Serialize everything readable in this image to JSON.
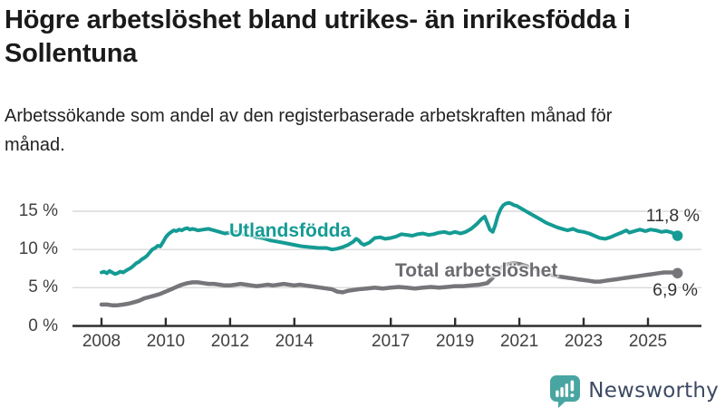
{
  "header": {
    "title": "Högre arbetslöshet bland utrikes- än inrikesfödda i Sollentuna",
    "subtitle": "Arbetssökande som andel av den registerbaserade arbetskraften månad för månad."
  },
  "footer": {
    "brand": "Newsworthy",
    "logo_icon": "bar-chart-speech-bubble-icon"
  },
  "colors": {
    "accent_teal": "#149b94",
    "series_gray": "#76767a",
    "label_gray": "#6b6b70",
    "grid": "#d9d9d9",
    "axis": "#2e2e2e",
    "annotation_text": "#333333",
    "logo_teal": "#48a5a2",
    "brand_navy": "#3d4a63"
  },
  "chart_data": {
    "type": "line",
    "title": "Högre arbetslöshet bland utrikes- än inrikesfödda i Sollentuna",
    "subtitle": "Arbetssökande som andel av den registerbaserade arbetskraften månad för månad.",
    "xlabel": "",
    "ylabel": "",
    "grid": "horizontal",
    "legend_position": "inline-labels",
    "y_axis": {
      "ticks": [
        0,
        5,
        10,
        15
      ],
      "labels": [
        "0 %",
        "5 %",
        "10 %",
        "15 %"
      ],
      "ylim": [
        0,
        16.5
      ]
    },
    "x_axis": {
      "ticks": [
        2008,
        2010,
        2012,
        2014,
        2017,
        2019,
        2021,
        2023,
        2025
      ],
      "labels": [
        "2008",
        "2010",
        "2012",
        "2014",
        "2017",
        "2019",
        "2021",
        "2023",
        "2025"
      ],
      "xlim": [
        2008,
        2025.92
      ]
    },
    "series": [
      {
        "name": "Utlandsfödda",
        "color": "#149b94",
        "end_label": "11,8 %",
        "end_value": 11.8,
        "points": [
          [
            2008.0,
            7.0
          ],
          [
            2008.08,
            7.1
          ],
          [
            2008.17,
            6.9
          ],
          [
            2008.25,
            7.2
          ],
          [
            2008.33,
            7.0
          ],
          [
            2008.42,
            6.8
          ],
          [
            2008.5,
            6.9
          ],
          [
            2008.58,
            7.1
          ],
          [
            2008.67,
            7.0
          ],
          [
            2008.75,
            7.2
          ],
          [
            2008.83,
            7.4
          ],
          [
            2008.92,
            7.6
          ],
          [
            2009.0,
            7.9
          ],
          [
            2009.08,
            8.2
          ],
          [
            2009.17,
            8.4
          ],
          [
            2009.25,
            8.7
          ],
          [
            2009.33,
            8.9
          ],
          [
            2009.42,
            9.2
          ],
          [
            2009.5,
            9.6
          ],
          [
            2009.58,
            10.0
          ],
          [
            2009.67,
            10.2
          ],
          [
            2009.75,
            10.5
          ],
          [
            2009.83,
            10.4
          ],
          [
            2009.92,
            11.0
          ],
          [
            2010.0,
            11.6
          ],
          [
            2010.08,
            12.0
          ],
          [
            2010.17,
            12.3
          ],
          [
            2010.25,
            12.5
          ],
          [
            2010.33,
            12.4
          ],
          [
            2010.42,
            12.6
          ],
          [
            2010.5,
            12.5
          ],
          [
            2010.58,
            12.7
          ],
          [
            2010.67,
            12.8
          ],
          [
            2010.75,
            12.6
          ],
          [
            2010.83,
            12.7
          ],
          [
            2010.92,
            12.6
          ],
          [
            2011.0,
            12.5
          ],
          [
            2011.17,
            12.6
          ],
          [
            2011.33,
            12.7
          ],
          [
            2011.5,
            12.5
          ],
          [
            2011.67,
            12.3
          ],
          [
            2011.83,
            12.1
          ],
          [
            2012.0,
            12.2
          ],
          [
            2012.17,
            12.3
          ],
          [
            2012.33,
            12.1
          ],
          [
            2012.5,
            11.9
          ],
          [
            2012.67,
            11.8
          ],
          [
            2012.83,
            11.6
          ],
          [
            2013.0,
            11.5
          ],
          [
            2013.25,
            11.2
          ],
          [
            2013.5,
            11.0
          ],
          [
            2013.75,
            10.8
          ],
          [
            2014.0,
            10.6
          ],
          [
            2014.25,
            10.4
          ],
          [
            2014.5,
            10.3
          ],
          [
            2014.75,
            10.2
          ],
          [
            2015.0,
            10.2
          ],
          [
            2015.17,
            10.0
          ],
          [
            2015.33,
            10.1
          ],
          [
            2015.5,
            10.3
          ],
          [
            2015.67,
            10.6
          ],
          [
            2015.83,
            11.0
          ],
          [
            2015.92,
            11.4
          ],
          [
            2016.0,
            11.2
          ],
          [
            2016.08,
            10.8
          ],
          [
            2016.17,
            10.6
          ],
          [
            2016.33,
            10.9
          ],
          [
            2016.5,
            11.5
          ],
          [
            2016.67,
            11.6
          ],
          [
            2016.83,
            11.4
          ],
          [
            2017.0,
            11.5
          ],
          [
            2017.17,
            11.7
          ],
          [
            2017.33,
            12.0
          ],
          [
            2017.5,
            11.9
          ],
          [
            2017.67,
            11.8
          ],
          [
            2017.83,
            12.0
          ],
          [
            2018.0,
            12.1
          ],
          [
            2018.17,
            11.9
          ],
          [
            2018.33,
            12.0
          ],
          [
            2018.5,
            12.2
          ],
          [
            2018.67,
            12.3
          ],
          [
            2018.83,
            12.1
          ],
          [
            2019.0,
            12.3
          ],
          [
            2019.17,
            12.1
          ],
          [
            2019.33,
            12.3
          ],
          [
            2019.5,
            12.7
          ],
          [
            2019.67,
            13.3
          ],
          [
            2019.83,
            14.0
          ],
          [
            2019.92,
            14.3
          ],
          [
            2020.0,
            13.5
          ],
          [
            2020.08,
            12.6
          ],
          [
            2020.17,
            12.3
          ],
          [
            2020.25,
            13.2
          ],
          [
            2020.33,
            14.4
          ],
          [
            2020.42,
            15.3
          ],
          [
            2020.5,
            15.8
          ],
          [
            2020.58,
            16.0
          ],
          [
            2020.67,
            16.1
          ],
          [
            2020.75,
            16.0
          ],
          [
            2020.83,
            15.8
          ],
          [
            2020.92,
            15.7
          ],
          [
            2021.0,
            15.5
          ],
          [
            2021.17,
            15.1
          ],
          [
            2021.33,
            14.7
          ],
          [
            2021.5,
            14.3
          ],
          [
            2021.67,
            13.9
          ],
          [
            2021.83,
            13.5
          ],
          [
            2022.0,
            13.2
          ],
          [
            2022.17,
            12.9
          ],
          [
            2022.33,
            12.7
          ],
          [
            2022.5,
            12.5
          ],
          [
            2022.67,
            12.7
          ],
          [
            2022.83,
            12.4
          ],
          [
            2023.0,
            12.3
          ],
          [
            2023.17,
            12.1
          ],
          [
            2023.33,
            11.8
          ],
          [
            2023.5,
            11.5
          ],
          [
            2023.67,
            11.4
          ],
          [
            2023.83,
            11.6
          ],
          [
            2024.0,
            11.9
          ],
          [
            2024.17,
            12.2
          ],
          [
            2024.33,
            12.5
          ],
          [
            2024.42,
            12.2
          ],
          [
            2024.58,
            12.4
          ],
          [
            2024.75,
            12.6
          ],
          [
            2024.92,
            12.4
          ],
          [
            2025.08,
            12.6
          ],
          [
            2025.25,
            12.5
          ],
          [
            2025.42,
            12.3
          ],
          [
            2025.58,
            12.4
          ],
          [
            2025.75,
            12.2
          ],
          [
            2025.92,
            11.8
          ]
        ]
      },
      {
        "name": "Total arbetslöshet",
        "color": "#76767a",
        "end_label": "6,9 %",
        "end_value": 6.9,
        "points": [
          [
            2008.0,
            2.8
          ],
          [
            2008.17,
            2.8
          ],
          [
            2008.33,
            2.7
          ],
          [
            2008.5,
            2.7
          ],
          [
            2008.67,
            2.8
          ],
          [
            2008.83,
            2.9
          ],
          [
            2009.0,
            3.1
          ],
          [
            2009.17,
            3.3
          ],
          [
            2009.33,
            3.6
          ],
          [
            2009.5,
            3.8
          ],
          [
            2009.67,
            4.0
          ],
          [
            2009.83,
            4.2
          ],
          [
            2010.0,
            4.5
          ],
          [
            2010.17,
            4.8
          ],
          [
            2010.33,
            5.1
          ],
          [
            2010.5,
            5.4
          ],
          [
            2010.67,
            5.6
          ],
          [
            2010.83,
            5.7
          ],
          [
            2011.0,
            5.7
          ],
          [
            2011.17,
            5.6
          ],
          [
            2011.33,
            5.5
          ],
          [
            2011.5,
            5.5
          ],
          [
            2011.67,
            5.4
          ],
          [
            2011.83,
            5.3
          ],
          [
            2012.0,
            5.3
          ],
          [
            2012.17,
            5.4
          ],
          [
            2012.33,
            5.5
          ],
          [
            2012.5,
            5.4
          ],
          [
            2012.67,
            5.3
          ],
          [
            2012.83,
            5.2
          ],
          [
            2013.0,
            5.3
          ],
          [
            2013.17,
            5.4
          ],
          [
            2013.33,
            5.3
          ],
          [
            2013.5,
            5.4
          ],
          [
            2013.67,
            5.5
          ],
          [
            2013.83,
            5.4
          ],
          [
            2014.0,
            5.3
          ],
          [
            2014.17,
            5.4
          ],
          [
            2014.33,
            5.3
          ],
          [
            2014.5,
            5.2
          ],
          [
            2014.67,
            5.1
          ],
          [
            2014.83,
            5.0
          ],
          [
            2015.0,
            4.9
          ],
          [
            2015.17,
            4.8
          ],
          [
            2015.33,
            4.5
          ],
          [
            2015.5,
            4.4
          ],
          [
            2015.67,
            4.6
          ],
          [
            2015.83,
            4.7
          ],
          [
            2016.0,
            4.8
          ],
          [
            2016.25,
            4.9
          ],
          [
            2016.5,
            5.0
          ],
          [
            2016.75,
            4.9
          ],
          [
            2017.0,
            5.0
          ],
          [
            2017.25,
            5.1
          ],
          [
            2017.5,
            5.0
          ],
          [
            2017.75,
            4.9
          ],
          [
            2018.0,
            5.0
          ],
          [
            2018.25,
            5.1
          ],
          [
            2018.5,
            5.0
          ],
          [
            2018.75,
            5.1
          ],
          [
            2019.0,
            5.2
          ],
          [
            2019.25,
            5.2
          ],
          [
            2019.5,
            5.3
          ],
          [
            2019.75,
            5.4
          ],
          [
            2020.0,
            5.6
          ],
          [
            2020.17,
            6.3
          ],
          [
            2020.33,
            7.2
          ],
          [
            2020.5,
            7.8
          ],
          [
            2020.67,
            8.1
          ],
          [
            2020.83,
            8.2
          ],
          [
            2021.0,
            8.1
          ],
          [
            2021.17,
            7.9
          ],
          [
            2021.33,
            7.7
          ],
          [
            2021.5,
            7.4
          ],
          [
            2021.67,
            7.1
          ],
          [
            2021.83,
            6.9
          ],
          [
            2022.0,
            6.7
          ],
          [
            2022.17,
            6.5
          ],
          [
            2022.33,
            6.4
          ],
          [
            2022.5,
            6.3
          ],
          [
            2022.67,
            6.2
          ],
          [
            2022.83,
            6.1
          ],
          [
            2023.0,
            6.0
          ],
          [
            2023.17,
            5.9
          ],
          [
            2023.33,
            5.8
          ],
          [
            2023.5,
            5.8
          ],
          [
            2023.67,
            5.9
          ],
          [
            2023.83,
            6.0
          ],
          [
            2024.0,
            6.1
          ],
          [
            2024.17,
            6.2
          ],
          [
            2024.33,
            6.3
          ],
          [
            2024.5,
            6.4
          ],
          [
            2024.67,
            6.5
          ],
          [
            2024.83,
            6.6
          ],
          [
            2025.0,
            6.7
          ],
          [
            2025.17,
            6.8
          ],
          [
            2025.33,
            6.9
          ],
          [
            2025.5,
            7.0
          ],
          [
            2025.75,
            7.0
          ],
          [
            2025.92,
            6.9
          ]
        ]
      }
    ]
  }
}
